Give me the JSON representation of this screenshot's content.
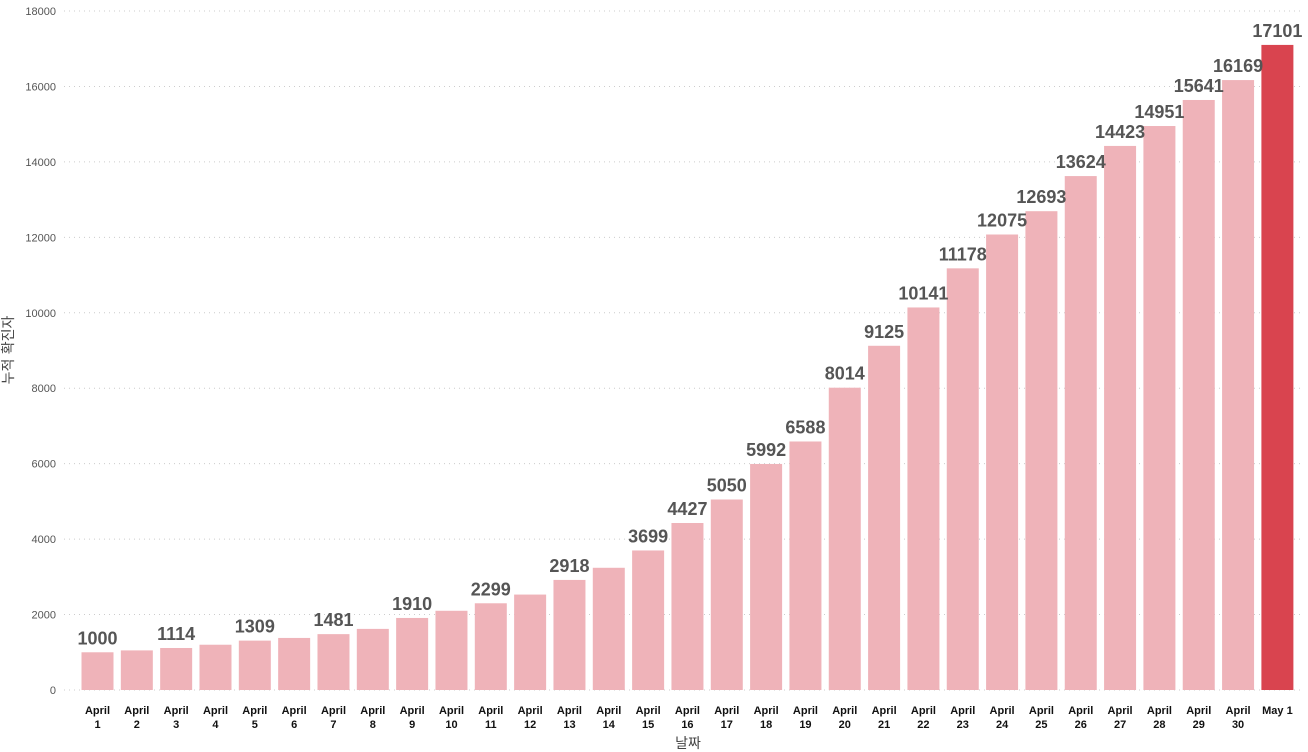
{
  "chart_data": {
    "type": "bar",
    "xlabel": "날짜",
    "ylabel": "누적 확진자",
    "ylim": [
      0,
      18000
    ],
    "yticks": [
      0,
      2000,
      4000,
      6000,
      8000,
      10000,
      12000,
      14000,
      16000,
      18000
    ],
    "grid": "horizontal dotted",
    "categories": [
      [
        "April",
        "1"
      ],
      [
        "April",
        "2"
      ],
      [
        "April",
        "3"
      ],
      [
        "April",
        "4"
      ],
      [
        "April",
        "5"
      ],
      [
        "April",
        "6"
      ],
      [
        "April",
        "7"
      ],
      [
        "April",
        "8"
      ],
      [
        "April",
        "9"
      ],
      [
        "April",
        "10"
      ],
      [
        "April",
        "11"
      ],
      [
        "April",
        "12"
      ],
      [
        "April",
        "13"
      ],
      [
        "April",
        "14"
      ],
      [
        "April",
        "15"
      ],
      [
        "April",
        "16"
      ],
      [
        "April",
        "17"
      ],
      [
        "April",
        "18"
      ],
      [
        "April",
        "19"
      ],
      [
        "April",
        "20"
      ],
      [
        "April",
        "21"
      ],
      [
        "April",
        "22"
      ],
      [
        "April",
        "23"
      ],
      [
        "April",
        "24"
      ],
      [
        "April",
        "25"
      ],
      [
        "April",
        "26"
      ],
      [
        "April",
        "27"
      ],
      [
        "April",
        "28"
      ],
      [
        "April",
        "29"
      ],
      [
        "April",
        "30"
      ],
      [
        "May 1"
      ]
    ],
    "values": [
      1000,
      1050,
      1114,
      1200,
      1309,
      1380,
      1481,
      1620,
      1910,
      2100,
      2299,
      2530,
      2918,
      3240,
      3699,
      4427,
      5050,
      5992,
      6588,
      8014,
      9125,
      10141,
      11178,
      12075,
      12693,
      13624,
      14423,
      14951,
      15641,
      16169,
      17101
    ],
    "data_labels": [
      "1000",
      "",
      "1114",
      "",
      "1309",
      "",
      "1481",
      "",
      "1910",
      "",
      "2299",
      "",
      "2918",
      "",
      "3699",
      "4427",
      "5050",
      "5992",
      "6588",
      "8014",
      "9125",
      "10141",
      "11178",
      "12075",
      "12693",
      "13624",
      "14423",
      "14951",
      "15641",
      "16169",
      "17101"
    ],
    "highlight_index": 30,
    "colors": {
      "bar": "#efb3b9",
      "highlight": "#d9444f",
      "grid": "#cccccc"
    }
  }
}
